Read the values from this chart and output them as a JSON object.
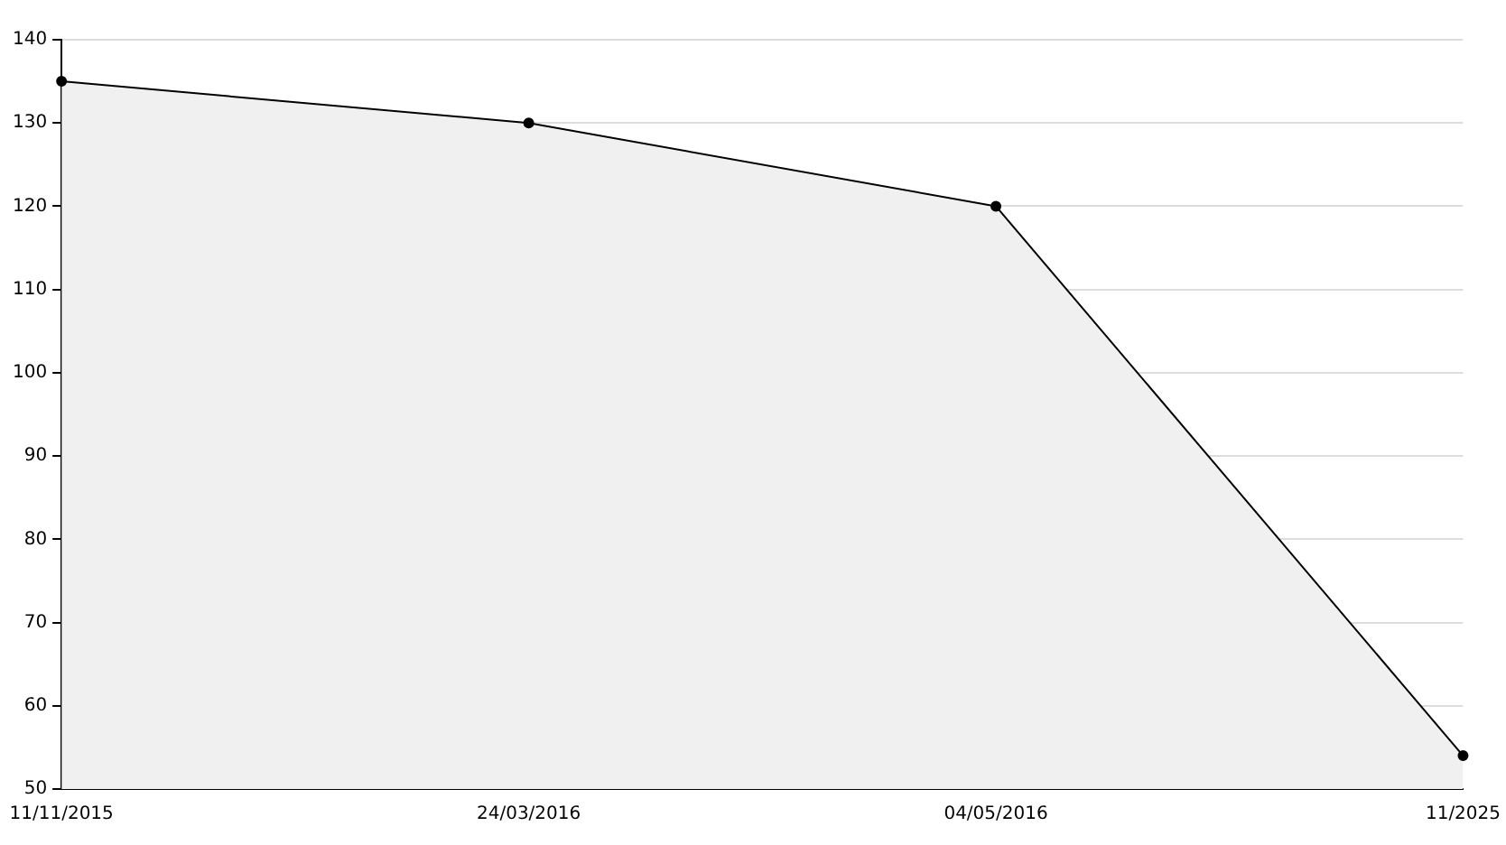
{
  "chart_data": {
    "type": "area",
    "categories": [
      "11/11/2015",
      "24/03/2016",
      "04/05/2016",
      "11/2025"
    ],
    "series": [
      {
        "color": "#000000",
        "values": [
          135,
          130,
          120,
          54
        ]
      }
    ],
    "ylim": [
      50,
      140
    ],
    "yticks": [
      50,
      60,
      70,
      80,
      90,
      100,
      110,
      120,
      130,
      140
    ],
    "grid": "y",
    "legend": false,
    "marker": "circle",
    "line_style": "solid"
  }
}
